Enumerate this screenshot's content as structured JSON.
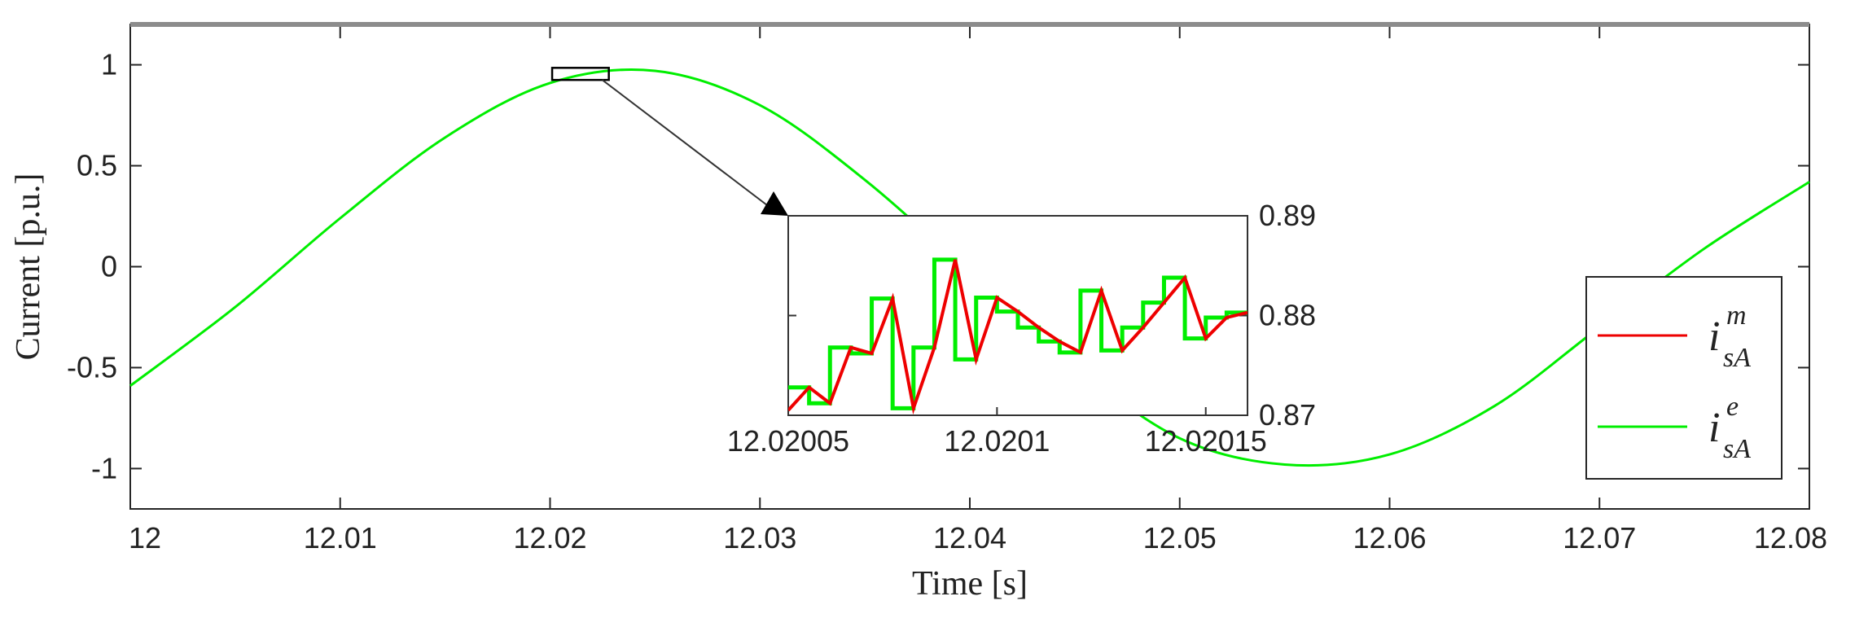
{
  "chart_data": [
    {
      "type": "line",
      "xlabel": "Time [s]",
      "ylabel": "Current [p.u.]",
      "xlim": [
        12,
        12.08
      ],
      "ylim": [
        -1.2,
        1.2
      ],
      "xticks": [
        "12",
        "12.01",
        "12.02",
        "12.03",
        "12.04",
        "12.05",
        "12.06",
        "12.07",
        "12.08"
      ],
      "yticks": [
        "-1",
        "-0.5",
        "0",
        "0.5",
        "1"
      ],
      "grid": false,
      "legend_position": "bottom-right",
      "series": [
        {
          "name": "i_sA^e",
          "color": "#00ee00",
          "x": [
            12.0,
            12.005,
            12.01,
            12.015,
            12.02,
            12.025,
            12.03,
            12.035,
            12.04,
            12.045,
            12.05,
            12.055,
            12.06,
            12.065,
            12.07,
            12.075,
            12.08
          ],
          "y": [
            -0.59,
            -0.2,
            0.24,
            0.64,
            0.91,
            0.97,
            0.8,
            0.43,
            -0.03,
            -0.49,
            -0.85,
            -0.98,
            -0.93,
            -0.69,
            -0.3,
            0.09,
            0.42
          ]
        }
      ],
      "legend": [
        {
          "base": "i",
          "sup": "m",
          "sub": "sA",
          "color": "#ee0000"
        },
        {
          "base": "i",
          "sup": "e",
          "sub": "sA",
          "color": "#00ee00"
        }
      ],
      "zoom_region": {
        "x": [
          12.0201,
          12.0228
        ],
        "y": [
          0.925,
          0.985
        ]
      }
    },
    {
      "type": "line",
      "role": "inset",
      "xlim": [
        12.02005,
        12.02016
      ],
      "ylim": [
        0.87,
        0.89
      ],
      "xticks": [
        "12.02005",
        "12.0201",
        "12.02015"
      ],
      "yticks": [
        "0.87",
        "0.88",
        "0.89"
      ],
      "series": [
        {
          "name": "i_sA^m",
          "color": "#ee0000",
          "style": "line",
          "x": [
            12.02005,
            12.020055,
            12.02006,
            12.020065,
            12.02007,
            12.020075,
            12.02008,
            12.020085,
            12.02009,
            12.020095,
            12.0201,
            12.020105,
            12.02011,
            12.020115,
            12.02012,
            12.020125,
            12.02013,
            12.020135,
            12.02014,
            12.020145,
            12.02015,
            12.020155,
            12.02016
          ],
          "y": [
            0.8705,
            0.8728,
            0.8712,
            0.8768,
            0.8762,
            0.8817,
            0.8707,
            0.8768,
            0.8856,
            0.8756,
            0.8818,
            0.8804,
            0.8788,
            0.8774,
            0.8763,
            0.8825,
            0.8765,
            0.8788,
            0.8813,
            0.8838,
            0.8777,
            0.8798,
            0.8803
          ]
        },
        {
          "name": "i_sA^e",
          "color": "#00ee00",
          "style": "step",
          "x": [
            12.02005,
            12.020055,
            12.02006,
            12.020065,
            12.02007,
            12.020075,
            12.02008,
            12.020085,
            12.02009,
            12.020095,
            12.0201,
            12.020105,
            12.02011,
            12.020115,
            12.02012,
            12.020125,
            12.02013,
            12.020135,
            12.02014,
            12.020145,
            12.02015,
            12.020155,
            12.02016
          ],
          "y": [
            0.8728,
            0.8712,
            0.8768,
            0.8762,
            0.8817,
            0.8707,
            0.8768,
            0.8856,
            0.8756,
            0.8818,
            0.8804,
            0.8788,
            0.8774,
            0.8763,
            0.8825,
            0.8765,
            0.8788,
            0.8813,
            0.8838,
            0.8777,
            0.8798,
            0.8803,
            0.8803
          ]
        }
      ]
    }
  ]
}
